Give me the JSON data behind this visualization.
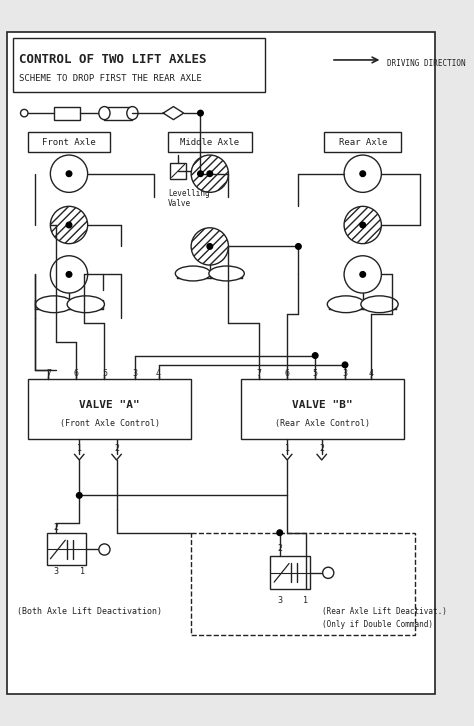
{
  "title_line1": "CONTROL OF TWO LIFT AXLES",
  "title_line2": "SCHEME TO DROP FIRST THE REAR AXLE",
  "driving_direction": "DRIVING DIRECTION",
  "front_axle_label": "Front Axle",
  "middle_axle_label": "Middle Axle",
  "rear_axle_label": "Rear Axle",
  "levelling_valve_label": "Levelling\nValve",
  "valve_a_label": "VALVE \"A\"",
  "valve_a_sub": "(Front Axle Control)",
  "valve_b_label": "VALVE \"B\"",
  "valve_b_sub": "(Rear Axle Control)",
  "valve_a_ports": [
    "7",
    "6",
    "5",
    "3",
    "4"
  ],
  "valve_b_ports": [
    "7",
    "6",
    "5",
    "3",
    "4"
  ],
  "both_axle_label": "(Both Axle Lift Deactivation)",
  "rear_axle_label2a": "(Rear Axle Lift Deactivat.)",
  "rear_axle_label2b": "(Only if Double Command)",
  "bg_color": "#e8e8e8",
  "inner_bg": "#ffffff",
  "line_color": "#222222",
  "hatch_pattern": "////",
  "font_family": "DejaVu Sans"
}
